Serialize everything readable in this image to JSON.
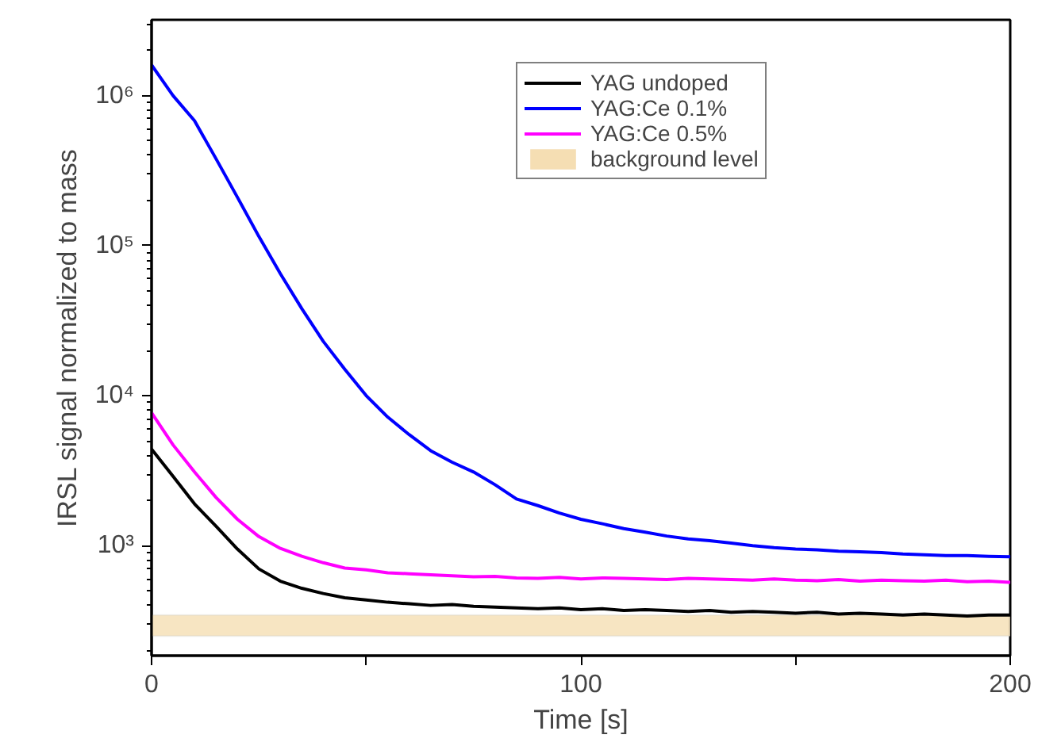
{
  "chart_data": {
    "type": "line",
    "xlabel": "Time [s]",
    "ylabel": "IRSL signal normalized to mass",
    "x": [
      0,
      5,
      10,
      15,
      20,
      25,
      30,
      35,
      40,
      45,
      50,
      55,
      60,
      65,
      70,
      75,
      80,
      85,
      90,
      95,
      100,
      105,
      110,
      115,
      120,
      125,
      130,
      135,
      140,
      145,
      150,
      155,
      160,
      165,
      170,
      175,
      180,
      185,
      190,
      195,
      200
    ],
    "series": [
      {
        "name": "YAG undoped",
        "color": "#000000",
        "values": [
          4400,
          2900,
          1900,
          1350,
          950,
          700,
          580,
          520,
          480,
          450,
          435,
          420,
          410,
          400,
          405,
          395,
          390,
          385,
          380,
          385,
          375,
          380,
          370,
          375,
          370,
          365,
          370,
          360,
          365,
          360,
          355,
          360,
          350,
          355,
          350,
          345,
          350,
          345,
          340,
          345,
          345
        ]
      },
      {
        "name": "YAG:Ce 0.1%",
        "color": "#0000ff",
        "values": [
          1600000,
          1000000,
          680000,
          380000,
          210000,
          115000,
          65000,
          38000,
          23000,
          15000,
          10000,
          7200,
          5500,
          4300,
          3600,
          3100,
          2550,
          2050,
          1850,
          1650,
          1500,
          1400,
          1300,
          1230,
          1160,
          1110,
          1080,
          1040,
          1000,
          970,
          950,
          940,
          920,
          910,
          900,
          880,
          870,
          860,
          860,
          850,
          845
        ]
      },
      {
        "name": "YAG:Ce 0.5%",
        "color": "#ff00ff",
        "values": [
          7700,
          4700,
          3100,
          2100,
          1500,
          1150,
          960,
          850,
          770,
          710,
          690,
          660,
          650,
          640,
          630,
          620,
          625,
          610,
          605,
          615,
          600,
          610,
          605,
          600,
          595,
          605,
          600,
          595,
          590,
          600,
          590,
          585,
          595,
          580,
          590,
          585,
          580,
          590,
          575,
          580,
          570
        ]
      }
    ],
    "bands": [
      {
        "axis": "y",
        "from": 250,
        "to": 345,
        "label": "background level",
        "color": "#f5deb3"
      }
    ],
    "xlim": [
      0,
      200
    ],
    "xticks": [
      0,
      {
        "value": 50,
        "label": null
      },
      100,
      {
        "value": 150,
        "label": null
      },
      200
    ],
    "ylim": [
      185,
      3200000
    ],
    "yticks": [
      {
        "value": 1000,
        "label": "10³"
      },
      {
        "value": 10000,
        "label": "10⁴"
      },
      {
        "value": 100000,
        "label": "10⁵"
      },
      {
        "value": 1000000,
        "label": "10⁶"
      }
    ],
    "log": "y",
    "grid": false,
    "legend": "top right",
    "marker": "none",
    "line_style": "solid"
  }
}
